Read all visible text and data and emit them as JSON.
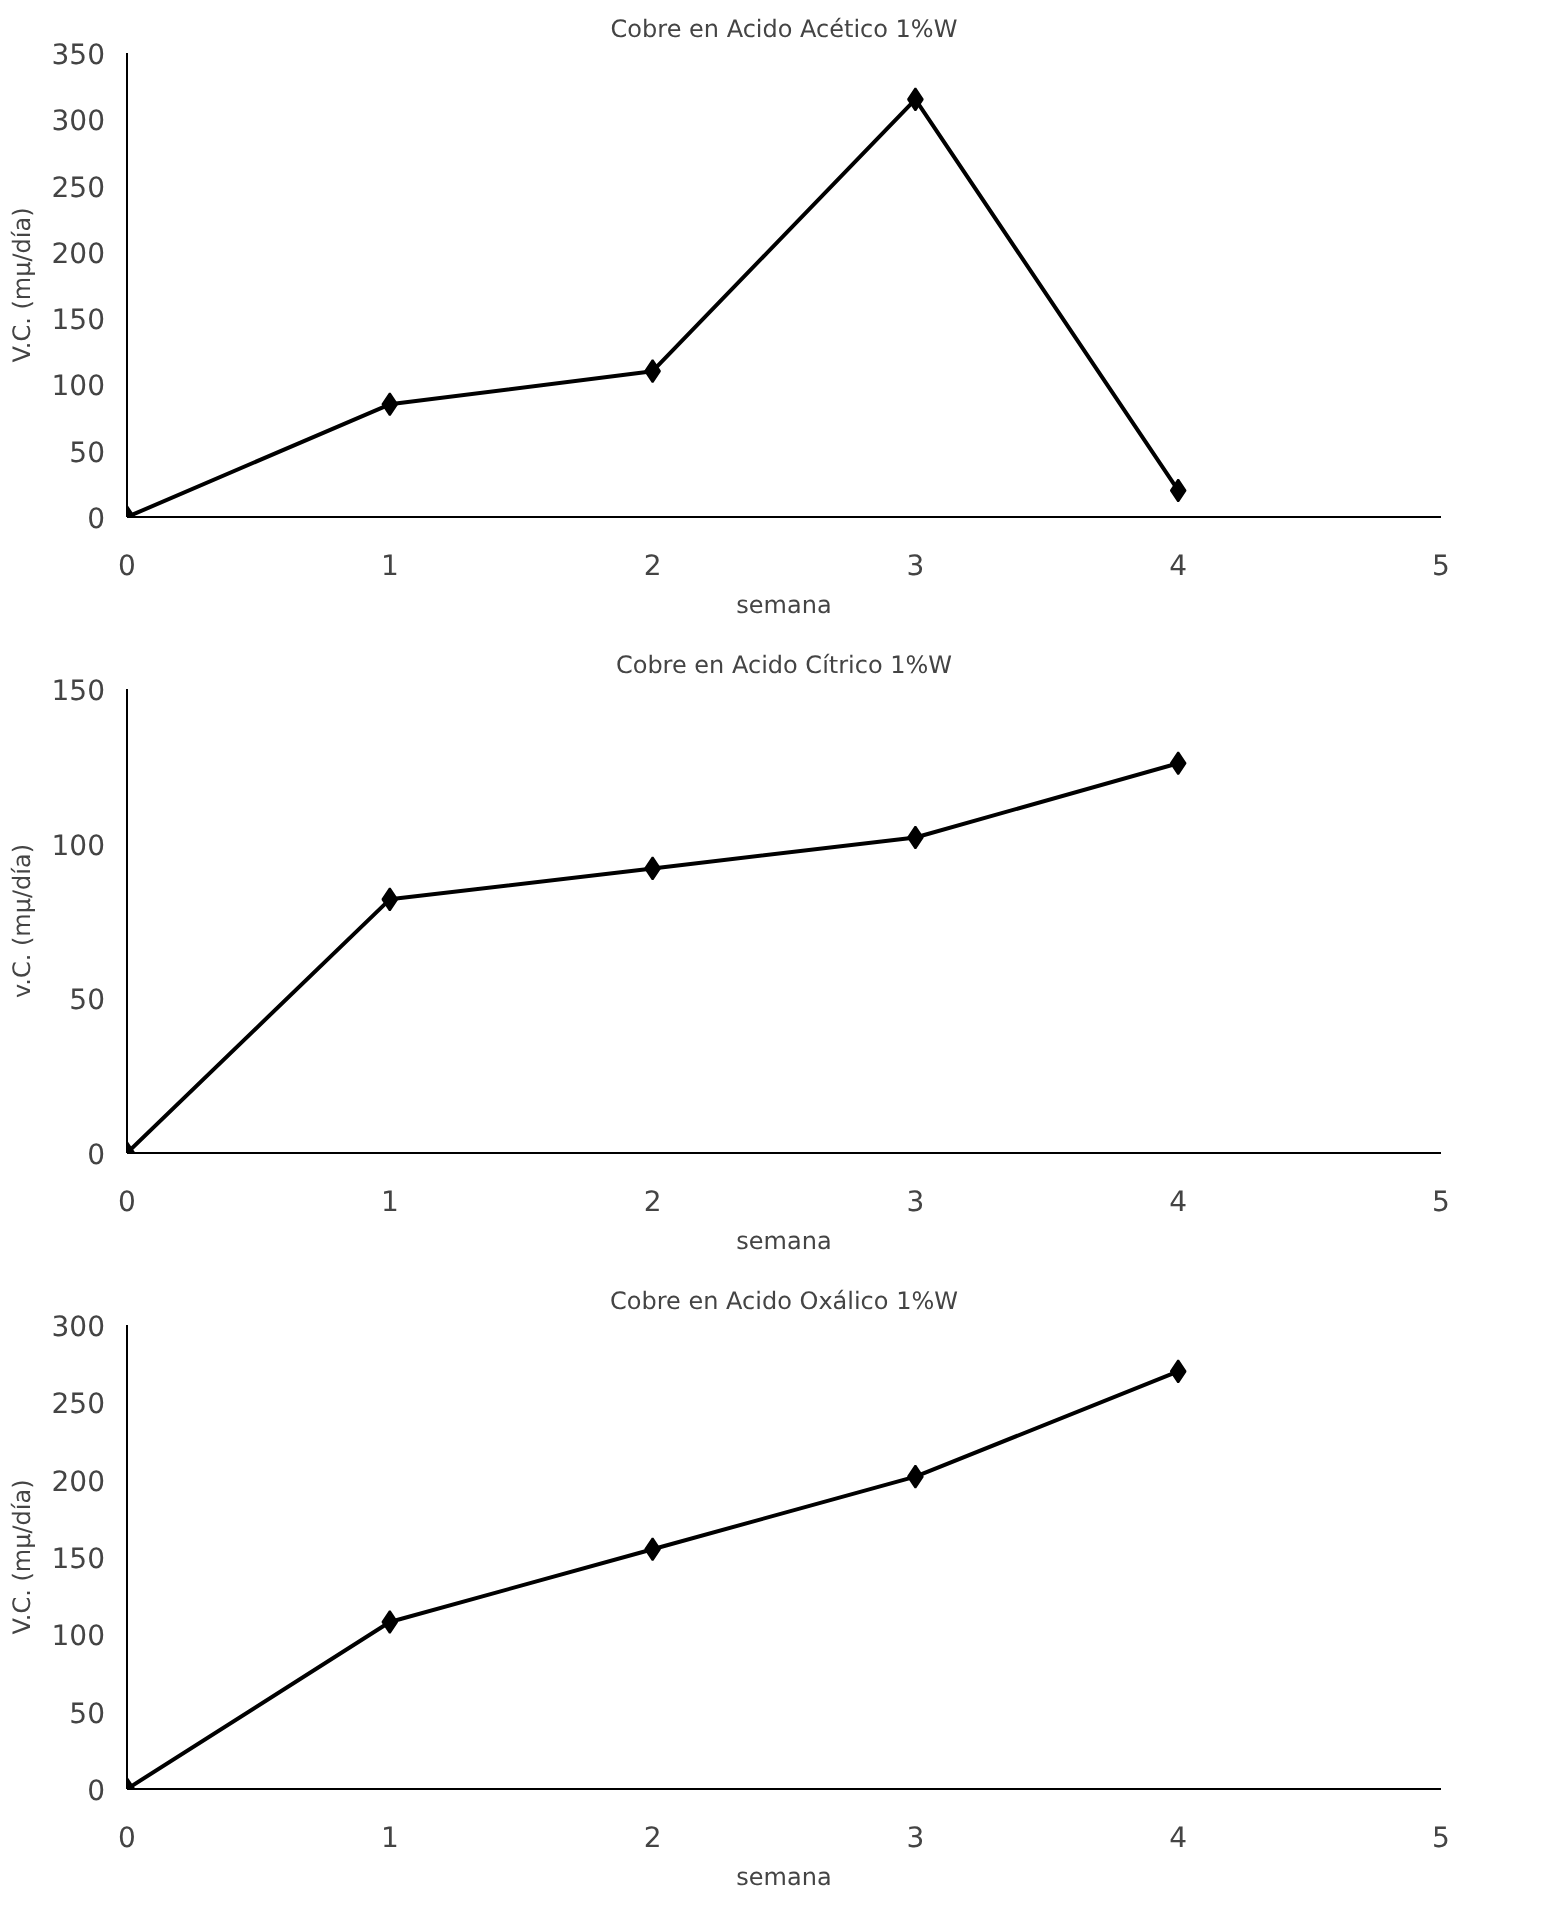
{
  "chart_data": [
    {
      "type": "line",
      "title": "Cobre en Acido Acético 1%W",
      "xlabel": "semana",
      "ylabel": "V.C. (mμ/día)",
      "x": [
        0,
        1,
        2,
        3,
        4
      ],
      "series": [
        {
          "color": "#000000",
          "values": [
            0,
            85,
            110,
            315,
            20
          ]
        }
      ],
      "xlim": [
        0,
        5
      ],
      "xticks": [
        0,
        1,
        2,
        3,
        4,
        5
      ],
      "ylim": [
        0,
        350
      ],
      "yticks": [
        0,
        50,
        100,
        150,
        200,
        250,
        300,
        350
      ],
      "marker": "diamond",
      "line_style": "solid"
    },
    {
      "type": "line",
      "title": "Cobre en Acido Cítrico 1%W",
      "xlabel": "semana",
      "ylabel": "v.C. (mμ/día)",
      "x": [
        0,
        1,
        2,
        3,
        4
      ],
      "series": [
        {
          "color": "#000000",
          "values": [
            0,
            82,
            92,
            102,
            126
          ]
        }
      ],
      "xlim": [
        0,
        5
      ],
      "xticks": [
        0,
        1,
        2,
        3,
        4,
        5
      ],
      "ylim": [
        0,
        150
      ],
      "yticks": [
        0,
        50,
        100,
        150
      ],
      "marker": "diamond",
      "line_style": "solid"
    },
    {
      "type": "line",
      "title": "Cobre en Acido Oxálico 1%W",
      "xlabel": "semana",
      "ylabel": "V.C. (mμ/día)",
      "x": [
        0,
        1,
        2,
        3,
        4
      ],
      "series": [
        {
          "color": "#000000",
          "values": [
            0,
            108,
            155,
            202,
            270
          ]
        }
      ],
      "xlim": [
        0,
        5
      ],
      "xticks": [
        0,
        1,
        2,
        3,
        4,
        5
      ],
      "ylim": [
        0,
        300
      ],
      "yticks": [
        0,
        50,
        100,
        150,
        200,
        250,
        300
      ],
      "marker": "diamond",
      "line_style": "solid"
    }
  ]
}
